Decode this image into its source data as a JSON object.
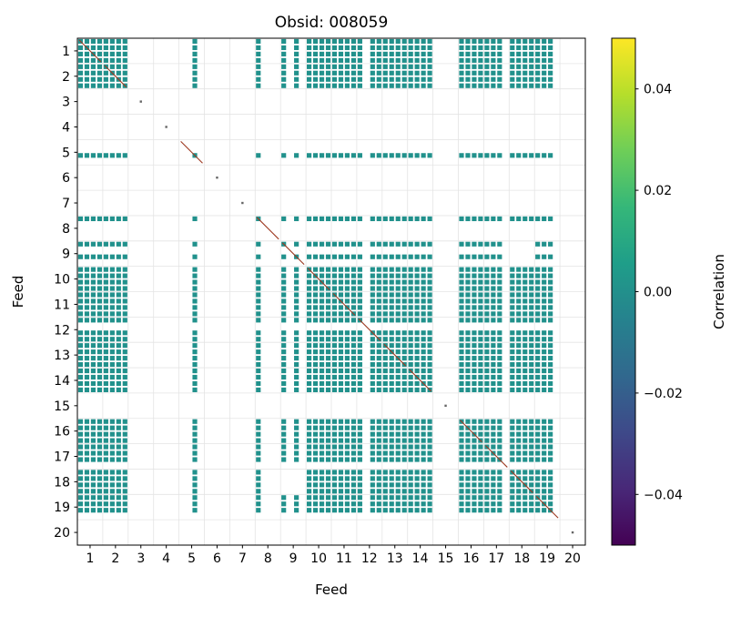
{
  "title": "Obsid: 008059",
  "chart_data": {
    "type": "heatmap",
    "title": "Obsid: 008059",
    "xlabel": "Feed",
    "ylabel": "Feed",
    "n_feeds": 20,
    "bands_per_feed": 4,
    "x_ticks": [
      "1",
      "2",
      "3",
      "4",
      "5",
      "6",
      "7",
      "8",
      "9",
      "10",
      "11",
      "12",
      "13",
      "14",
      "15",
      "16",
      "17",
      "18",
      "19",
      "20"
    ],
    "y_ticks": [
      "1",
      "2",
      "3",
      "4",
      "5",
      "6",
      "7",
      "8",
      "9",
      "10",
      "11",
      "12",
      "13",
      "14",
      "15",
      "16",
      "17",
      "18",
      "19",
      "20"
    ],
    "active_bands": [
      [
        0,
        1,
        2,
        3
      ],
      [
        0,
        1,
        2,
        3
      ],
      [],
      [],
      [
        2
      ],
      [],
      [],
      [
        0
      ],
      [
        0,
        2
      ],
      [
        0,
        1,
        2,
        3
      ],
      [
        0,
        1,
        2,
        3
      ],
      [
        0,
        2,
        3
      ],
      [
        0,
        1,
        2,
        3
      ],
      [
        0,
        1,
        2,
        3
      ],
      [],
      [
        0,
        1,
        2,
        3
      ],
      [
        0,
        1,
        2
      ],
      [
        0,
        1,
        2,
        3
      ],
      [
        0,
        1,
        2
      ],
      []
    ],
    "holes": [
      [
        18,
        9
      ],
      [
        9,
        18
      ]
    ],
    "cell_value": 0.0,
    "cell_color": "#21918c",
    "diagonal_color": "#9e3a22",
    "inactive_marker_color": "#666666",
    "grid_color": "#e4e4e4",
    "frame_color": "#000000",
    "colorbar": {
      "label": "Correlation",
      "colormap": "viridis",
      "vmin": -0.05,
      "vmax": 0.05,
      "tick_values": [
        0.04,
        0.02,
        0.0,
        -0.02,
        -0.04
      ],
      "tick_labels": [
        "0.04",
        "0.02",
        "0.00",
        "−0.02",
        "−0.04"
      ],
      "gradient_stops": [
        "#fde725",
        "#b5de2b",
        "#6ece58",
        "#35b779",
        "#1f9e89",
        "#26828e",
        "#31688e",
        "#3e4989",
        "#482878",
        "#440154"
      ]
    }
  }
}
